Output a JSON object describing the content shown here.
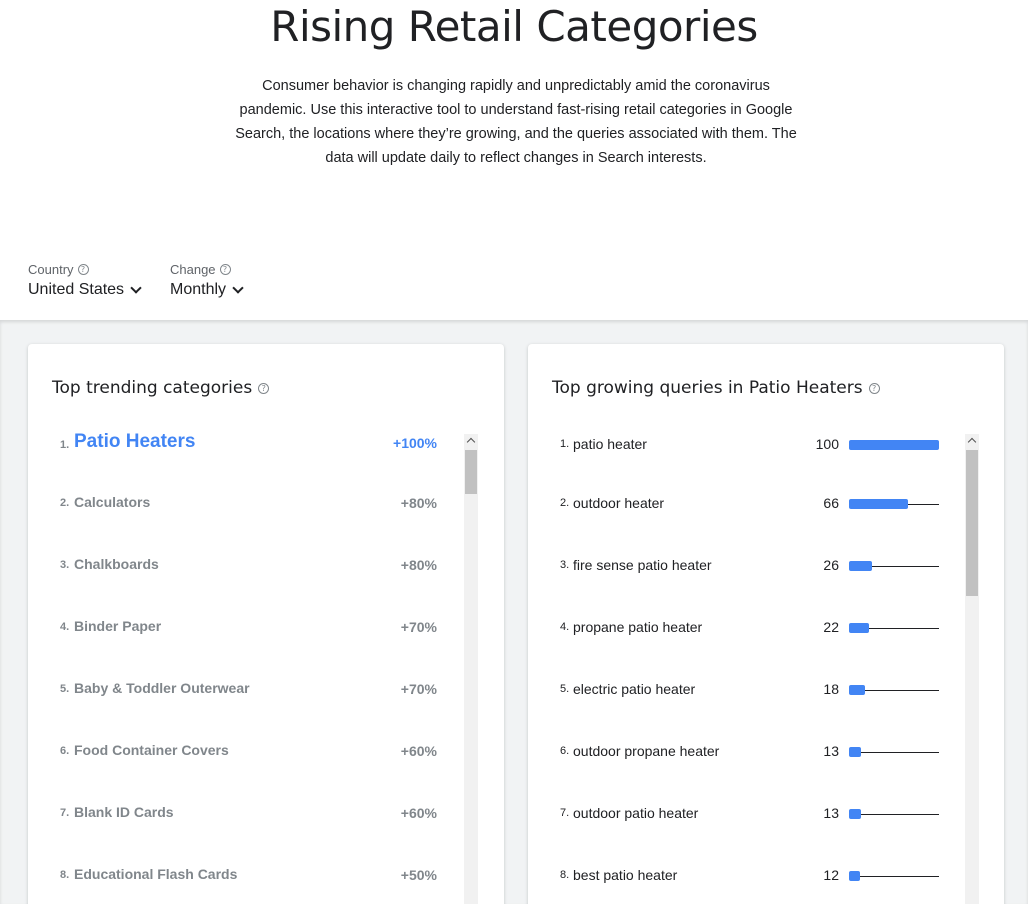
{
  "header": {
    "title": "Rising Retail Categories",
    "description": "Consumer behavior is changing rapidly and unpredictably amid the coronavirus pandemic. Use this interactive tool to understand fast-rising retail categories in Google Search, the locations where they’re growing, and the queries associated with them. The data will update daily to reflect changes in Search interests."
  },
  "filters": {
    "country": {
      "label": "Country",
      "value": "United States"
    },
    "change": {
      "label": "Change",
      "value": "Monthly"
    }
  },
  "categories_card": {
    "title": "Top trending categories",
    "items": [
      {
        "rank": "1.",
        "name": "Patio Heaters",
        "change": "+100%"
      },
      {
        "rank": "2.",
        "name": "Calculators",
        "change": "+80%"
      },
      {
        "rank": "3.",
        "name": "Chalkboards",
        "change": "+80%"
      },
      {
        "rank": "4.",
        "name": "Binder Paper",
        "change": "+70%"
      },
      {
        "rank": "5.",
        "name": "Baby & Toddler Outerwear",
        "change": "+70%"
      },
      {
        "rank": "6.",
        "name": "Food Container Covers",
        "change": "+60%"
      },
      {
        "rank": "7.",
        "name": "Blank ID Cards",
        "change": "+60%"
      },
      {
        "rank": "8.",
        "name": "Educational Flash Cards",
        "change": "+50%"
      }
    ]
  },
  "queries_card": {
    "title": "Top growing queries in Patio Heaters",
    "items": [
      {
        "rank": "1.",
        "query": "patio heater",
        "value": 100
      },
      {
        "rank": "2.",
        "query": "outdoor heater",
        "value": 66
      },
      {
        "rank": "3.",
        "query": "fire sense patio heater",
        "value": 26
      },
      {
        "rank": "4.",
        "query": "propane patio heater",
        "value": 22
      },
      {
        "rank": "5.",
        "query": "electric patio heater",
        "value": 18
      },
      {
        "rank": "6.",
        "query": "outdoor propane heater",
        "value": 13
      },
      {
        "rank": "7.",
        "query": "outdoor patio heater",
        "value": 13
      },
      {
        "rank": "8.",
        "query": "best patio heater",
        "value": 12
      }
    ]
  },
  "icons": {
    "help": "help-circle-icon",
    "dropdown": "chevron-down-icon",
    "scroll_up": "chevron-up-icon"
  },
  "colors": {
    "accent": "#4285f4",
    "muted": "#80868b",
    "text": "#202124",
    "band": "#f1f3f4"
  }
}
